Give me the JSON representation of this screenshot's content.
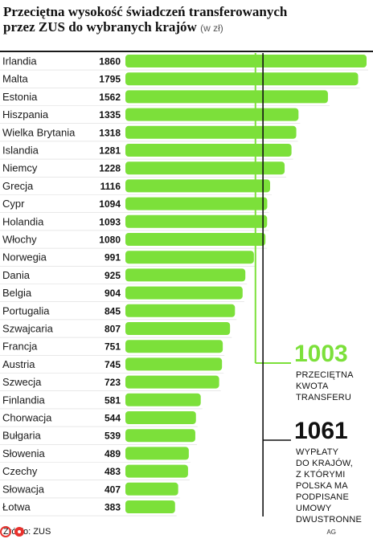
{
  "title_line1": "Przeciętna wysokość świadczeń transferowanych",
  "title_line2": "przez ZUS do wybranych krajów",
  "title_unit": "(w zł)",
  "source": "Źródło: ZUS",
  "credit": "AG",
  "colors": {
    "bar": "#7ce03a",
    "text": "#1a1a1a",
    "line": "#111111"
  },
  "annotations": [
    {
      "value": "1003",
      "lines": [
        "PRZECIĘTNA",
        "KWOTA",
        "TRANSFERU"
      ]
    },
    {
      "value": "1061",
      "lines": [
        "WYPŁATY",
        "DO KRAJÓW,",
        "Z KTÓRYMI",
        "POLSKA MA",
        "PODPISANE",
        "UMOWY",
        "DWUSTRONNE"
      ]
    }
  ],
  "chart_data": {
    "type": "bar",
    "orientation": "horizontal",
    "categories": [
      "Irlandia",
      "Malta",
      "Estonia",
      "Hiszpania",
      "Wielka Brytania",
      "Islandia",
      "Niemcy",
      "Grecja",
      "Cypr",
      "Holandia",
      "Włochy",
      "Norwegia",
      "Dania",
      "Belgia",
      "Portugalia",
      "Szwajcaria",
      "Francja",
      "Austria",
      "Szwecja",
      "Finlandia",
      "Chorwacja",
      "Bułgaria",
      "Słowenia",
      "Czechy",
      "Słowacja",
      "Łotwa"
    ],
    "values": [
      1860,
      1795,
      1562,
      1335,
      1318,
      1281,
      1228,
      1116,
      1094,
      1093,
      1080,
      991,
      925,
      904,
      845,
      807,
      751,
      745,
      723,
      581,
      544,
      539,
      489,
      483,
      407,
      383
    ],
    "reference_lines": [
      {
        "value": 1003,
        "label": "PRZECIĘTNA KWOTA TRANSFERU"
      },
      {
        "value": 1061,
        "label": "WYPŁATY DO KRAJÓW, Z KTÓRYMI POLSKA MA PODPISANE UMOWY DWUSTRONNE"
      }
    ],
    "title": "Przeciętna wysokość świadczeń transferowanych przez ZUS do wybranych krajów (w zł)"
  }
}
